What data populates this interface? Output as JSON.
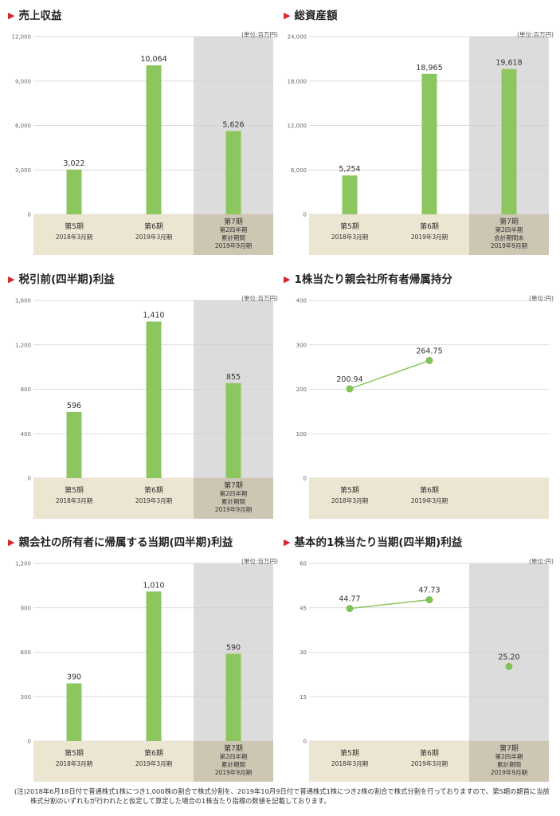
{
  "units": {
    "million_yen": "(単位:百万円)",
    "yen": "(単位:円)"
  },
  "colors": {
    "bar": "#8cc65e",
    "line": "#8cc65e",
    "marker": "#7fc256",
    "title_marker": "#d7262b",
    "period_band": "#ebe5d1",
    "period_band_dark": "#cdc6b2",
    "forecast_shade": "#dcdcdc",
    "grid": "#d0d0d0",
    "axis_tick": "#888888"
  },
  "category_labels": {
    "p5": [
      "第5期",
      "2018年3月期"
    ],
    "p6": [
      "第6期",
      "2019年3月期"
    ],
    "p7_cumulative": [
      "第7期",
      "第2四半期",
      "累計期間",
      "2019年9月期"
    ],
    "p7_end": [
      "第7期",
      "第2四半期",
      "会計期間末",
      "2019年9月期"
    ]
  },
  "chart_data": [
    {
      "type": "bar",
      "title": "売上収益",
      "unit": "(単位:百万円)",
      "categories": [
        "第5期 2018年3月期",
        "第6期 2019年3月期",
        "第7期 第2四半期 累計期間 2019年9月期"
      ],
      "values": [
        3022,
        10064,
        5626
      ],
      "value_labels": [
        "3,022",
        "10,064",
        "5,626"
      ],
      "ylim": [
        0,
        12000
      ],
      "yticks": [
        0,
        3000,
        6000,
        9000,
        12000
      ],
      "ytick_labels": [
        "0",
        "3,000",
        "6,000",
        "9,000",
        "12,000"
      ],
      "grid": true,
      "shaded_last": true
    },
    {
      "type": "bar",
      "title": "総資産額",
      "unit": "(単位:百万円)",
      "categories": [
        "第5期 2018年3月期",
        "第6期 2019年3月期",
        "第7期 第2四半期 会計期間末 2019年9月期"
      ],
      "values": [
        5254,
        18965,
        19618
      ],
      "value_labels": [
        "5,254",
        "18,965",
        "19,618"
      ],
      "ylim": [
        0,
        24000
      ],
      "yticks": [
        0,
        6000,
        12000,
        18000,
        24000
      ],
      "ytick_labels": [
        "0",
        "6,000",
        "12,000",
        "18,000",
        "24,000"
      ],
      "grid": true,
      "shaded_last": true
    },
    {
      "type": "bar",
      "title": "税引前(四半期)利益",
      "unit": "(単位:百万円)",
      "categories": [
        "第5期 2018年3月期",
        "第6期 2019年3月期",
        "第7期 第2四半期 累計期間 2019年9月期"
      ],
      "values": [
        596,
        1410,
        855
      ],
      "value_labels": [
        "596",
        "1,410",
        "855"
      ],
      "ylim": [
        0,
        1600
      ],
      "yticks": [
        0,
        400,
        800,
        1200,
        1600
      ],
      "ytick_labels": [
        "0",
        "400",
        "800",
        "1,200",
        "1,600"
      ],
      "grid": true,
      "shaded_last": true
    },
    {
      "type": "line",
      "title": "1株当たり親会社所有者帰属持分",
      "unit": "(単位:円)",
      "categories": [
        "第5期 2018年3月期",
        "第6期 2019年3月期"
      ],
      "values": [
        200.94,
        264.75
      ],
      "value_labels": [
        "200.94",
        "264.75"
      ],
      "ylim": [
        0,
        400
      ],
      "yticks": [
        0,
        100,
        200,
        300,
        400
      ],
      "ytick_labels": [
        "0",
        "100",
        "200",
        "300",
        "400"
      ],
      "grid": true,
      "shaded_last": false
    },
    {
      "type": "bar",
      "title": "親会社の所有者に帰属する当期(四半期)利益",
      "unit": "(単位:百万円)",
      "categories": [
        "第5期 2018年3月期",
        "第6期 2019年3月期",
        "第7期 第2四半期 累計期間 2019年9月期"
      ],
      "values": [
        390,
        1010,
        590
      ],
      "value_labels": [
        "390",
        "1,010",
        "590"
      ],
      "ylim": [
        0,
        1200
      ],
      "yticks": [
        0,
        300,
        600,
        900,
        1200
      ],
      "ytick_labels": [
        "0",
        "300",
        "600",
        "900",
        "1,200"
      ],
      "grid": true,
      "shaded_last": true
    },
    {
      "type": "line",
      "title": "基本的1株当たり当期(四半期)利益",
      "unit": "(単位:円)",
      "categories": [
        "第5期 2018年3月期",
        "第6期 2019年3月期",
        "第7期 第2四半期 累計期間 2019年9月期"
      ],
      "values": [
        44.77,
        47.73,
        25.2
      ],
      "value_labels": [
        "44.77",
        "47.73",
        "25.20"
      ],
      "ylim": [
        0,
        60
      ],
      "yticks": [
        0,
        15,
        30,
        45,
        60
      ],
      "ytick_labels": [
        "0",
        "15",
        "30",
        "45",
        "60"
      ],
      "grid": true,
      "shaded_last": true,
      "connect_until": 1
    }
  ],
  "footnote": "(注)2018年6月18日付で普通株式1株につき1,000株の割合で株式分割を、2019年10月9日付で普通株式1株につき2株の割合で株式分割を行っておりますので、第5期の期首に当該株式分割のいずれもが行われたと仮定して算定した場合の1株当たり指標の数値を記載しております。"
}
